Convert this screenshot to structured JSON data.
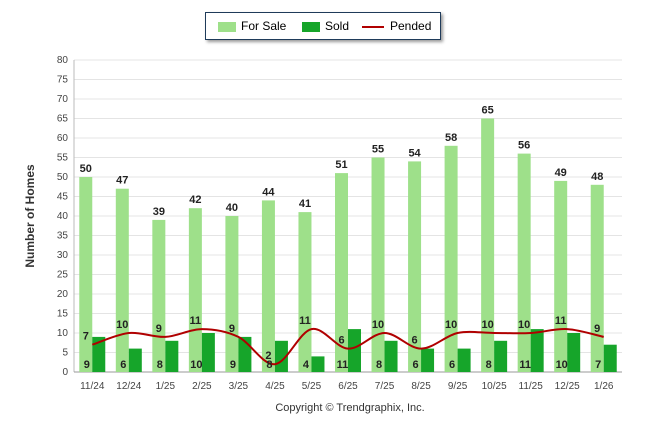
{
  "chart_data": {
    "type": "bar",
    "title": "",
    "ylabel": "Number of Homes",
    "xlabel": "",
    "ylim": [
      0,
      80
    ],
    "ytick_step": 5,
    "categories": [
      "11/24",
      "12/24",
      "1/25",
      "2/25",
      "3/25",
      "4/25",
      "5/25",
      "6/25",
      "7/25",
      "8/25",
      "9/25",
      "10/25",
      "11/25",
      "12/25",
      "1/26"
    ],
    "series": [
      {
        "name": "For Sale",
        "kind": "bar",
        "color": "#9ee08a",
        "values": [
          50,
          47,
          39,
          42,
          40,
          44,
          41,
          51,
          55,
          54,
          58,
          65,
          56,
          49,
          48
        ]
      },
      {
        "name": "Sold",
        "kind": "bar",
        "color": "#16a52a",
        "values": [
          9,
          6,
          8,
          10,
          9,
          8,
          4,
          11,
          8,
          6,
          6,
          8,
          11,
          10,
          7
        ]
      },
      {
        "name": "Pended",
        "kind": "line",
        "color": "#b00000",
        "values": [
          7,
          10,
          9,
          11,
          9,
          2,
          11,
          6,
          10,
          6,
          10,
          10,
          10,
          11,
          9
        ]
      }
    ],
    "legend_position": "top-center",
    "grid": true
  },
  "footer": {
    "copyright": "Copyright © Trendgraphix, Inc."
  }
}
